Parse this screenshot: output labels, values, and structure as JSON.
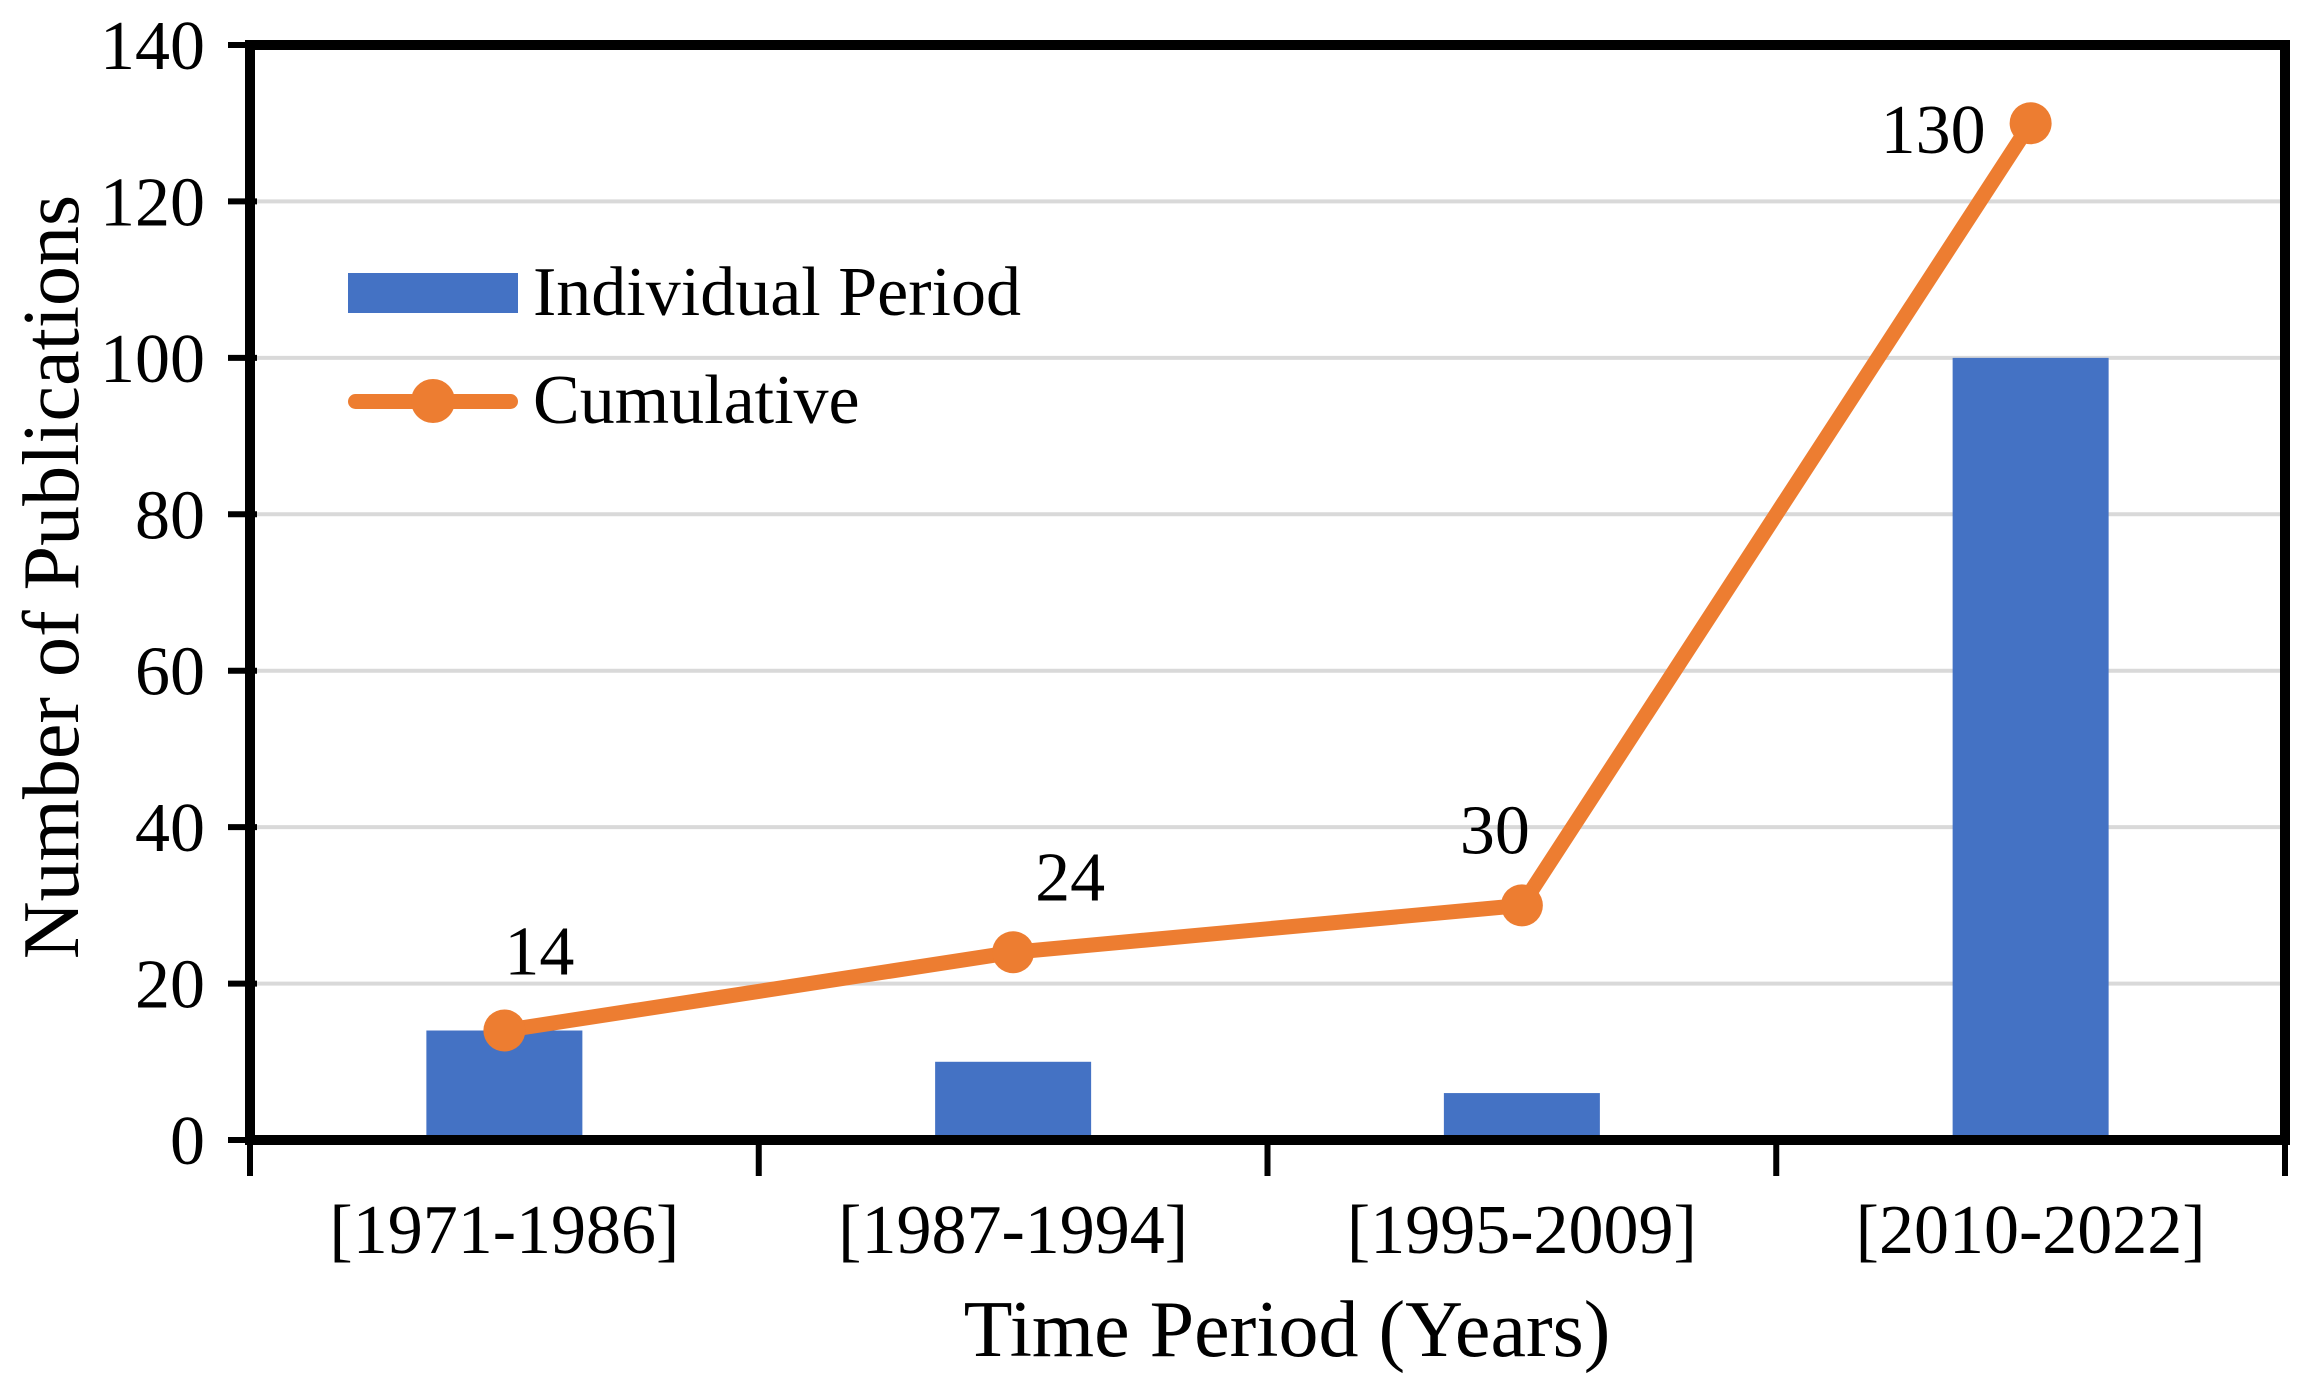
{
  "chart_data": {
    "type": "bar",
    "subtype": "bar-line-combo",
    "title": "",
    "categories": [
      "[1971-1986]",
      "[1987-1994]",
      "[1995-2009]",
      "[2010-2022]"
    ],
    "series": [
      {
        "name": "Individual Period",
        "type": "bar",
        "color": "#4472C4",
        "values": [
          14,
          10,
          6,
          100
        ]
      },
      {
        "name": "Cumulative",
        "type": "line",
        "color": "#ED7D31",
        "values": [
          14,
          24,
          30,
          130
        ],
        "data_labels": [
          "14",
          "24",
          "30",
          "130"
        ]
      }
    ],
    "xlabel": "Time Period (Years)",
    "ylabel": "Number of Publications",
    "ylim": [
      0,
      140
    ],
    "ytick_step": 20,
    "yticks": [
      "0",
      "20",
      "40",
      "60",
      "80",
      "100",
      "120",
      "140"
    ],
    "grid": "horizontal",
    "legend_position": "inside-top-left",
    "colors": {
      "grid": "#D9D9D9",
      "axis": "#000000",
      "text": "#000000",
      "background": "#FFFFFF"
    }
  }
}
